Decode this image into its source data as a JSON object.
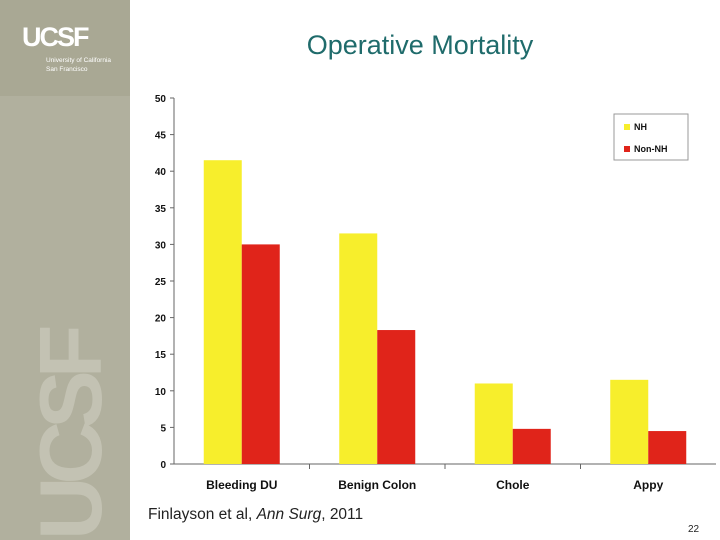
{
  "slide": {
    "title": "Operative Mortality",
    "logo_mark": "UCSF",
    "logo_line1": "University of California",
    "logo_line2": "San Francisco",
    "watermark": "UCSF",
    "citation_pre": "Finlayson et al, ",
    "citation_journal": "Ann Surg",
    "citation_post": ", 2011",
    "page_number": "22"
  },
  "chart_data": {
    "type": "bar",
    "title": "Operative Mortality",
    "categories": [
      "Bleeding DU",
      "Benign Colon",
      "Chole",
      "Appy"
    ],
    "series": [
      {
        "name": "NH",
        "color": "#f7ee2c",
        "values": [
          41.5,
          31.5,
          11,
          11.5
        ]
      },
      {
        "name": "Non-NH",
        "color": "#e0241a",
        "values": [
          30,
          18.3,
          4.8,
          4.5
        ]
      }
    ],
    "ylim": [
      0,
      50
    ],
    "yticks": [
      0,
      5,
      10,
      15,
      20,
      25,
      30,
      35,
      40,
      45,
      50
    ],
    "xlabel": "",
    "ylabel": "",
    "legend_position": "top-right"
  }
}
